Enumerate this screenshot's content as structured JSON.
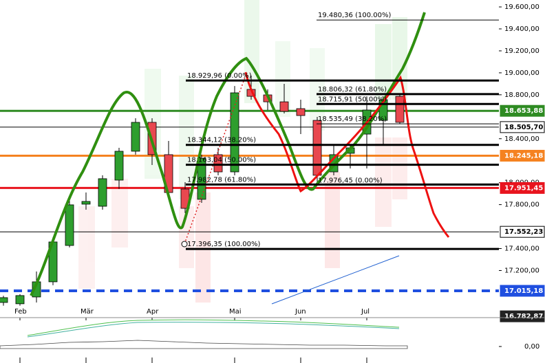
{
  "chart_data": {
    "type": "candlestick",
    "categories": [
      null,
      null,
      null,
      null,
      null,
      null,
      null,
      null,
      null,
      null,
      null,
      null,
      null,
      null,
      null,
      null,
      null,
      null,
      null,
      null,
      null,
      null,
      null,
      null,
      null
    ],
    "open": [
      16909,
      16897,
      16959,
      17097,
      17428,
      17804,
      17785,
      18023,
      18286,
      18549,
      18255,
      17942,
      17848,
      18255,
      18098,
      18849,
      18799,
      18736,
      18674,
      18567,
      18098,
      18267,
      18442,
      18567,
      18786
    ],
    "high": [
      16970,
      16985,
      17191,
      17504,
      17860,
      17910,
      18067,
      18317,
      18586,
      18586,
      18380,
      18004,
      18255,
      18317,
      18880,
      18974,
      18849,
      18899,
      18755,
      18599,
      18348,
      18348,
      18786,
      18786,
      18799
    ],
    "low": [
      16880,
      16880,
      16909,
      17066,
      17410,
      17754,
      17754,
      17942,
      18255,
      18161,
      17879,
      17723,
      17816,
      18067,
      18067,
      18755,
      18661,
      18630,
      18442,
      18004,
      18067,
      18129,
      18129,
      18348,
      18536
    ],
    "close": [
      16953,
      16972,
      17097,
      17460,
      17798,
      17829,
      18036,
      18286,
      18549,
      18255,
      17910,
      17766,
      18223,
      18098,
      18818,
      18786,
      18736,
      18649,
      18611,
      18067,
      18255,
      18317,
      18661,
      18755,
      18549
    ],
    "up_color": "#2e9e2e",
    "down_color": "#e8484f",
    "ylim": [
      16771,
      19663
    ],
    "yticks": [
      {
        "value": 19600,
        "label": "19.600,00"
      },
      {
        "value": 19400,
        "label": "19.400,00"
      },
      {
        "value": 19200,
        "label": "19.200,00"
      },
      {
        "value": 19000,
        "label": "19.000,00"
      },
      {
        "value": 18800,
        "label": "18.800,00"
      },
      {
        "value": 18400,
        "label": "18.400,00"
      },
      {
        "value": 18000,
        "label": "18.000,00"
      },
      {
        "value": 17800,
        "label": "17.800,00"
      },
      {
        "value": 17400,
        "label": "17.400,00"
      },
      {
        "value": 17200,
        "label": "17.200,00"
      }
    ],
    "xticks": [
      {
        "value": 1,
        "label": "Feb"
      },
      {
        "value": 5,
        "label": "Mär"
      },
      {
        "value": 9,
        "label": "Apr"
      },
      {
        "value": 14,
        "label": "Mai"
      },
      {
        "value": 18,
        "label": "Jun"
      },
      {
        "value": 22,
        "label": "Jul"
      }
    ],
    "price_lines": [
      {
        "value": 18653.88,
        "label": "18.653,88",
        "color": "#2e8b22"
      },
      {
        "value": 18505.7,
        "label": "18.505,70",
        "color": "#ffffff"
      },
      {
        "value": 18245.18,
        "label": "18.245,18",
        "color": "#f58220"
      },
      {
        "value": 17951.45,
        "label": "17.951,45",
        "color": "#e8141e"
      },
      {
        "value": 17552.23,
        "label": "17.552,23",
        "color": "#ffffff"
      },
      {
        "value": 17015.18,
        "label": "17.015,18",
        "color": "#1f4fe0"
      },
      {
        "value": 16782.87,
        "label": "16.782,87",
        "color": "#222222"
      }
    ],
    "fib_levels": [
      {
        "value": 19480.36,
        "label": "19.480,36 (100.00%)"
      },
      {
        "value": 18929.96,
        "label": "18.929,96 (0.00%)"
      },
      {
        "value": 18806.32,
        "label": "18.806,32 (61.80%)"
      },
      {
        "value": 18715.91,
        "label": "18.715,91 (50.00%)"
      },
      {
        "value": 18535.49,
        "label": "18.535,49 (38.20%)"
      },
      {
        "value": 18344.12,
        "label": "18.344,12 (38.20%)"
      },
      {
        "value": 18163.04,
        "label": "18.163,04 (50.00%)"
      },
      {
        "value": 17982.78,
        "label": "17.982,78 (61.80%)"
      },
      {
        "value": 17976.45,
        "label": "17.976,45 (0.00%)"
      },
      {
        "value": 17396.35,
        "label": "17.396,35 (100.00%)"
      }
    ],
    "lower_panel": {
      "yticks": [
        {
          "value": 0,
          "label": "0,00"
        }
      ]
    }
  }
}
